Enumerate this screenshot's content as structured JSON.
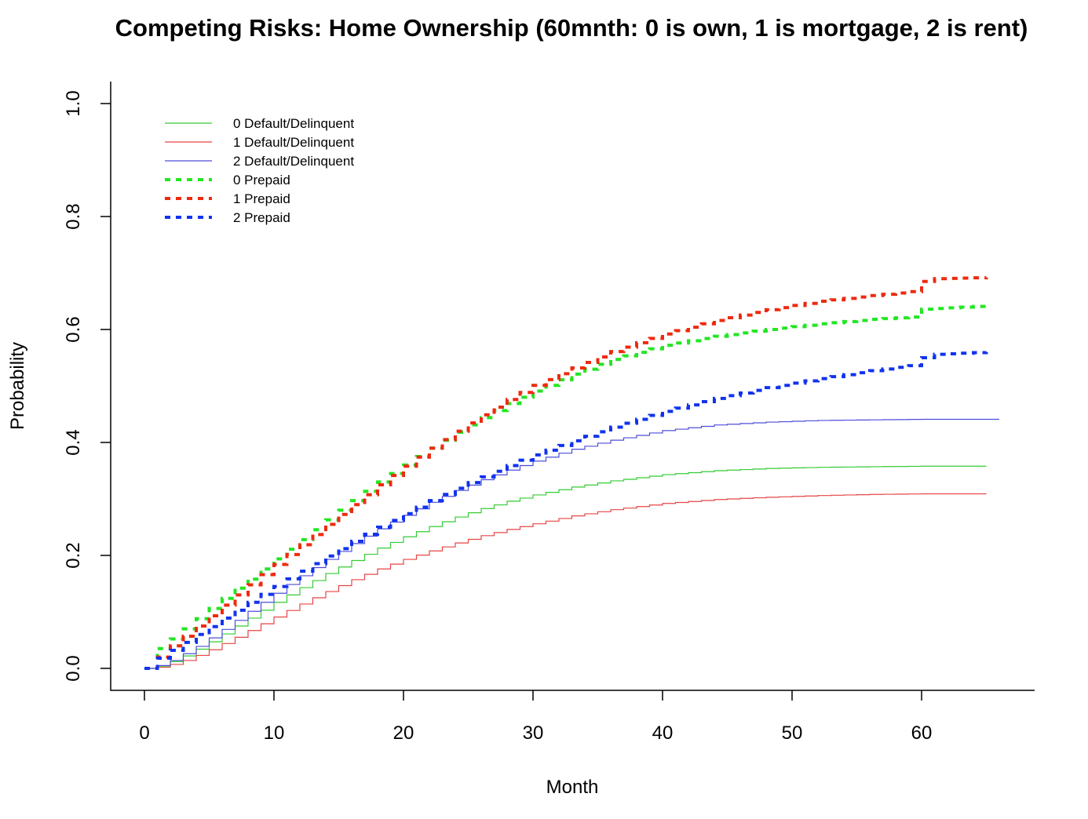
{
  "chart_data": {
    "type": "line",
    "title": "Competing Risks: Home Ownership (60mnth: 0 is own, 1 is mortgage, 2 is rent)",
    "xlabel": "Month",
    "ylabel": "Probability",
    "xlim": [
      0,
      66
    ],
    "ylim": [
      0,
      1
    ],
    "x_ticks": [
      0,
      10,
      20,
      30,
      40,
      50,
      60
    ],
    "y_ticks": [
      0.0,
      0.2,
      0.4,
      0.6,
      0.8,
      1.0
    ],
    "x_tick_labels": [
      "0",
      "10",
      "20",
      "30",
      "40",
      "50",
      "60"
    ],
    "y_tick_labels": [
      "0.0",
      "0.2",
      "0.4",
      "0.6",
      "0.8",
      "1.0"
    ],
    "legend": {
      "placement": "top-left"
    },
    "grid": false,
    "series": [
      {
        "name": "0 Default/Delinquent",
        "color": "#33cc33",
        "style": "solid",
        "x": [
          0,
          1,
          2,
          3,
          4,
          5,
          6,
          7,
          8,
          9,
          10,
          12,
          14,
          16,
          18,
          20,
          22,
          24,
          26,
          28,
          30,
          33,
          36,
          40,
          44,
          48,
          52,
          56,
          60,
          65
        ],
        "y": [
          0,
          0.004,
          0.012,
          0.022,
          0.034,
          0.047,
          0.061,
          0.075,
          0.089,
          0.103,
          0.117,
          0.143,
          0.168,
          0.191,
          0.213,
          0.233,
          0.251,
          0.268,
          0.283,
          0.296,
          0.307,
          0.321,
          0.332,
          0.343,
          0.35,
          0.354,
          0.356,
          0.357,
          0.358,
          0.358
        ]
      },
      {
        "name": "1 Default/Delinquent",
        "color": "#e64545",
        "style": "solid",
        "x": [
          0,
          1,
          2,
          3,
          4,
          5,
          6,
          7,
          8,
          9,
          10,
          12,
          14,
          16,
          18,
          20,
          22,
          24,
          26,
          28,
          30,
          33,
          36,
          40,
          44,
          48,
          52,
          56,
          60,
          65
        ],
        "y": [
          0,
          0.002,
          0.007,
          0.014,
          0.023,
          0.033,
          0.044,
          0.055,
          0.067,
          0.079,
          0.091,
          0.114,
          0.136,
          0.157,
          0.176,
          0.193,
          0.208,
          0.222,
          0.235,
          0.246,
          0.256,
          0.27,
          0.281,
          0.292,
          0.299,
          0.303,
          0.306,
          0.308,
          0.309,
          0.309
        ]
      },
      {
        "name": "2 Default/Delinquent",
        "color": "#4d4ddb",
        "style": "solid",
        "x": [
          0,
          1,
          2,
          3,
          4,
          5,
          6,
          7,
          8,
          9,
          10,
          12,
          14,
          16,
          18,
          20,
          22,
          24,
          26,
          28,
          30,
          33,
          36,
          40,
          44,
          48,
          52,
          56,
          60,
          66
        ],
        "y": [
          0,
          0.005,
          0.014,
          0.026,
          0.039,
          0.054,
          0.069,
          0.085,
          0.101,
          0.117,
          0.133,
          0.164,
          0.193,
          0.221,
          0.247,
          0.271,
          0.294,
          0.315,
          0.334,
          0.351,
          0.367,
          0.388,
          0.404,
          0.421,
          0.431,
          0.436,
          0.439,
          0.44,
          0.441,
          0.441
        ]
      },
      {
        "name": "0 Prepaid",
        "color": "#22e622",
        "style": "dashed",
        "x": [
          0,
          1,
          2,
          3,
          4,
          5,
          6,
          7,
          8,
          9,
          10,
          12,
          14,
          16,
          18,
          20,
          22,
          24,
          26,
          28,
          30,
          33,
          36,
          40,
          44,
          48,
          52,
          56,
          59,
          60,
          65
        ],
        "y": [
          0,
          0.035,
          0.052,
          0.07,
          0.088,
          0.106,
          0.124,
          0.142,
          0.158,
          0.176,
          0.194,
          0.228,
          0.263,
          0.297,
          0.33,
          0.36,
          0.39,
          0.418,
          0.444,
          0.469,
          0.491,
          0.521,
          0.547,
          0.572,
          0.588,
          0.6,
          0.61,
          0.618,
          0.622,
          0.636,
          0.642
        ]
      },
      {
        "name": "1 Prepaid",
        "color": "#ee2a0e",
        "style": "dashed",
        "x": [
          0,
          1,
          2,
          3,
          4,
          5,
          6,
          7,
          8,
          9,
          10,
          12,
          14,
          16,
          18,
          20,
          22,
          24,
          26,
          28,
          30,
          33,
          36,
          40,
          44,
          48,
          52,
          56,
          59,
          60,
          61,
          65
        ],
        "y": [
          0,
          0.02,
          0.04,
          0.057,
          0.075,
          0.093,
          0.112,
          0.13,
          0.148,
          0.166,
          0.184,
          0.219,
          0.255,
          0.29,
          0.325,
          0.358,
          0.39,
          0.42,
          0.449,
          0.476,
          0.501,
          0.532,
          0.561,
          0.592,
          0.616,
          0.635,
          0.65,
          0.66,
          0.667,
          0.685,
          0.69,
          0.692
        ]
      },
      {
        "name": "2 Prepaid",
        "color": "#1133ee",
        "style": "dashed",
        "x": [
          0,
          1,
          2,
          3,
          4,
          5,
          6,
          7,
          8,
          9,
          10,
          12,
          14,
          16,
          18,
          20,
          22,
          24,
          26,
          28,
          30,
          33,
          36,
          40,
          44,
          48,
          52,
          56,
          59,
          60,
          61,
          65
        ],
        "y": [
          0,
          0.018,
          0.032,
          0.046,
          0.06,
          0.074,
          0.089,
          0.103,
          0.117,
          0.131,
          0.145,
          0.172,
          0.199,
          0.225,
          0.25,
          0.274,
          0.297,
          0.319,
          0.339,
          0.359,
          0.378,
          0.403,
          0.427,
          0.455,
          0.478,
          0.497,
          0.513,
          0.527,
          0.536,
          0.55,
          0.556,
          0.56
        ]
      }
    ]
  }
}
